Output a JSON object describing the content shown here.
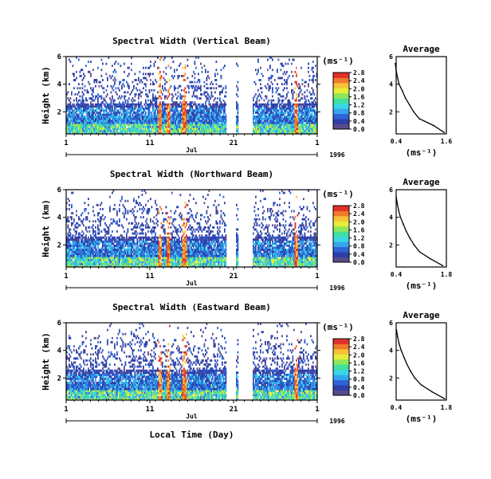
{
  "figure": {
    "shared_ylabel": "Height (km)",
    "xlabel_bottom": "Local Time (Day)",
    "month_label": "Jul",
    "year_label": "1996",
    "xticks": [
      "1",
      "11",
      "21",
      "1"
    ],
    "colorbar_unit": "(ms⁻¹)",
    "avg_title": "Average",
    "avg_xlabel": "(ms⁻¹)"
  },
  "colorscale": [
    "#5a4a8c",
    "#2c3fa8",
    "#2f63d6",
    "#35a6ee",
    "#3ad7e6",
    "#41e0a0",
    "#8ee65a",
    "#e6ee3a",
    "#f5c23a",
    "#f07a2a",
    "#e0302a"
  ],
  "chart_data": [
    {
      "type": "heatmap",
      "title": "Spectral Width (Vertical Beam)",
      "xlabel": "Local Time (Day)",
      "ylabel": "Height (km)",
      "x_range_days": [
        1,
        32
      ],
      "y_range_km": [
        0.4,
        6
      ],
      "yticks": [
        2,
        4,
        6
      ],
      "colorbar": {
        "min": 0.0,
        "max": 2.8,
        "ticks": [
          "0.0",
          "0.4",
          "0.8",
          "1.2",
          "1.6",
          "2.0",
          "2.4",
          "2.8"
        ]
      },
      "data_gaps_days": [
        [
          20.8,
          22.0
        ],
        [
          22.3,
          24.0
        ]
      ],
      "high_width_events_days": [
        12.6,
        13.6,
        15.6,
        29.4
      ],
      "average": {
        "xlim": [
          0.4,
          1.6
        ],
        "xticks": [
          "0.4",
          "1.6"
        ],
        "yticks": [
          2,
          4,
          6
        ],
        "height_km": [
          0.5,
          1.0,
          1.5,
          2.0,
          2.5,
          3.0,
          3.5,
          4.0,
          4.5,
          5.0,
          5.5
        ],
        "width_ms": [
          1.55,
          1.3,
          0.95,
          0.82,
          0.72,
          0.62,
          0.55,
          0.47,
          0.43,
          0.4,
          0.38
        ]
      }
    },
    {
      "type": "heatmap",
      "title": "Spectral Width (Northward Beam)",
      "xlabel": "Local Time (Day)",
      "ylabel": "Height (km)",
      "x_range_days": [
        1,
        32
      ],
      "y_range_km": [
        0.4,
        6
      ],
      "yticks": [
        2,
        4,
        6
      ],
      "colorbar": {
        "min": 0.0,
        "max": 2.8,
        "ticks": [
          "0.0",
          "0.4",
          "0.8",
          "1.2",
          "1.6",
          "2.0",
          "2.4",
          "2.8"
        ]
      },
      "data_gaps_days": [
        [
          20.8,
          22.0
        ],
        [
          22.3,
          24.0
        ]
      ],
      "high_width_events_days": [
        12.6,
        13.6,
        15.6,
        29.4
      ],
      "average": {
        "xlim": [
          0.4,
          1.8
        ],
        "xticks": [
          "0.4",
          "1.8"
        ],
        "yticks": [
          2,
          4,
          6
        ],
        "height_km": [
          0.5,
          1.0,
          1.5,
          2.0,
          2.5,
          3.0,
          3.5,
          4.0,
          4.5,
          5.0,
          5.5
        ],
        "width_ms": [
          1.7,
          1.35,
          1.05,
          0.9,
          0.78,
          0.68,
          0.6,
          0.52,
          0.47,
          0.43,
          0.4
        ]
      }
    },
    {
      "type": "heatmap",
      "title": "Spectral Width (Eastward Beam)",
      "xlabel": "Local Time (Day)",
      "ylabel": "Height (km)",
      "x_range_days": [
        1,
        32
      ],
      "y_range_km": [
        0.4,
        6
      ],
      "yticks": [
        2,
        4,
        6
      ],
      "colorbar": {
        "min": 0.0,
        "max": 2.8,
        "ticks": [
          "0.0",
          "0.4",
          "0.8",
          "1.2",
          "1.6",
          "2.0",
          "2.4",
          "2.8"
        ]
      },
      "data_gaps_days": [
        [
          20.8,
          22.0
        ],
        [
          22.3,
          24.0
        ]
      ],
      "high_width_events_days": [
        12.6,
        13.6,
        15.6,
        29.4
      ],
      "average": {
        "xlim": [
          0.4,
          1.8
        ],
        "xticks": [
          "0.4",
          "1.8"
        ],
        "yticks": [
          2,
          4,
          6
        ],
        "height_km": [
          0.5,
          1.0,
          1.5,
          2.0,
          2.5,
          3.0,
          3.5,
          4.0,
          4.5,
          5.0,
          5.5
        ],
        "width_ms": [
          1.75,
          1.4,
          1.1,
          0.92,
          0.8,
          0.7,
          0.62,
          0.54,
          0.48,
          0.44,
          0.41
        ]
      }
    }
  ]
}
